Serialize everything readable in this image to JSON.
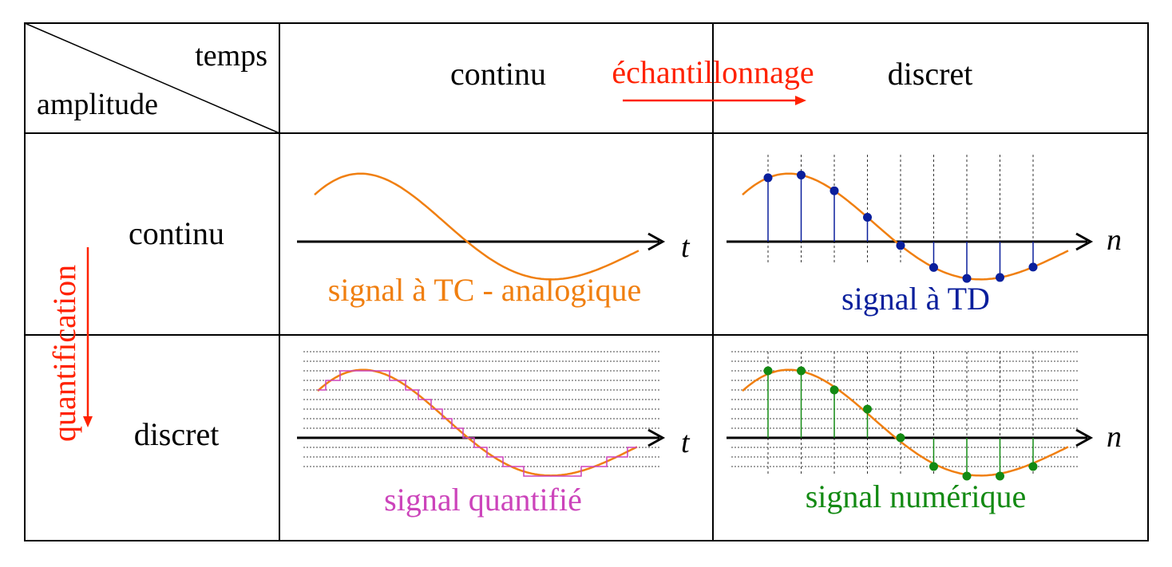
{
  "header": {
    "corner_top": "temps",
    "corner_bottom": "amplitude",
    "col_continu": "continu",
    "col_discret": "discret",
    "sampling_label": "échantillonnage"
  },
  "rows": {
    "row_continu": "continu",
    "row_discret": "discret",
    "quantization_label": "quantification"
  },
  "axes": {
    "time_continuous": "t",
    "time_discrete": "n"
  },
  "captions": {
    "analog": "signal à TC - analogique",
    "discrete_time": "signal à TD",
    "quantized": "signal quantifié",
    "digital": "signal numérique"
  },
  "colors": {
    "signal": "#f07f10",
    "arrow_red": "#ff2200",
    "td_samples": "#0a1f9c",
    "quantized": "#cc44bb",
    "digital": "#138a13",
    "border": "#000000",
    "grid": "#444444"
  }
}
